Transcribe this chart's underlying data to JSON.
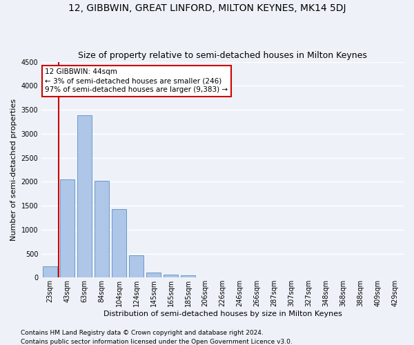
{
  "title": "12, GIBBWIN, GREAT LINFORD, MILTON KEYNES, MK14 5DJ",
  "subtitle": "Size of property relative to semi-detached houses in Milton Keynes",
  "xlabel": "Distribution of semi-detached houses by size in Milton Keynes",
  "ylabel": "Number of semi-detached properties",
  "categories": [
    "23sqm",
    "43sqm",
    "63sqm",
    "84sqm",
    "104sqm",
    "124sqm",
    "145sqm",
    "165sqm",
    "185sqm",
    "206sqm",
    "226sqm",
    "246sqm",
    "266sqm",
    "287sqm",
    "307sqm",
    "327sqm",
    "348sqm",
    "368sqm",
    "388sqm",
    "409sqm",
    "429sqm"
  ],
  "values": [
    240,
    2050,
    3380,
    2020,
    1430,
    470,
    100,
    60,
    50,
    0,
    0,
    0,
    0,
    0,
    0,
    0,
    0,
    0,
    0,
    0,
    0
  ],
  "bar_color": "#aec6e8",
  "bar_edge_color": "#5a8fc2",
  "annotation_text": "12 GIBBWIN: 44sqm\n← 3% of semi-detached houses are smaller (246)\n97% of semi-detached houses are larger (9,383) →",
  "annotation_box_color": "#ffffff",
  "annotation_box_edge_color": "#cc0000",
  "vline_color": "#cc0000",
  "vline_x_index": 1,
  "ylim": [
    0,
    4500
  ],
  "yticks": [
    0,
    500,
    1000,
    1500,
    2000,
    2500,
    3000,
    3500,
    4000,
    4500
  ],
  "footer1": "Contains HM Land Registry data © Crown copyright and database right 2024.",
  "footer2": "Contains public sector information licensed under the Open Government Licence v3.0.",
  "bg_color": "#eef2f8",
  "plot_bg_color": "#eef2f8",
  "title_fontsize": 10,
  "subtitle_fontsize": 9,
  "label_fontsize": 8,
  "tick_fontsize": 7,
  "footer_fontsize": 6.5,
  "annotation_fontsize": 7.5,
  "grid_color": "#ffffff",
  "bar_width": 0.85
}
